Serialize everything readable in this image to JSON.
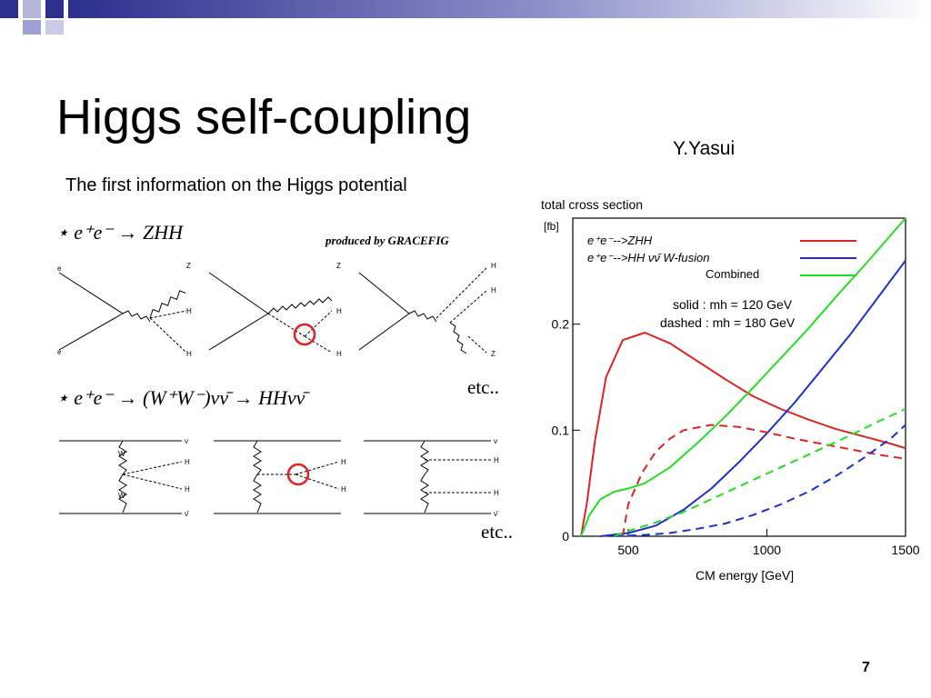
{
  "slide": {
    "title": "Higgs self-coupling",
    "author": "Y.Yasui",
    "subtitle": "The first information on  the Higgs potential",
    "page_number": "7"
  },
  "diagrams": {
    "process1": "⋆ e⁺e⁻ → ZHH",
    "process2": "⋆ e⁺e⁻ → (W⁺W⁻)νν̄ → HHνν̄",
    "produced_by": "produced by GRACEFIG",
    "etc_top": "etc..",
    "etc_bottom": "etc..",
    "highlight_color": "#e02020",
    "particle_labels": {
      "e": "e",
      "Z": "Z",
      "H": "H",
      "W": "W",
      "nu": "ν",
      "nubar": "ν̄"
    }
  },
  "chart_data": {
    "type": "line",
    "ylabel": "total cross section",
    "yunit": "[fb]",
    "xlabel": "CM energy  [GeV]",
    "xlim": [
      300,
      1500
    ],
    "ylim": [
      0,
      0.3
    ],
    "xticks": [
      "500",
      "1000",
      "1500"
    ],
    "yticks": [
      "0",
      "0.1",
      "0.2"
    ],
    "legend": {
      "placement": "top-left",
      "entries": [
        {
          "label": "e⁺e⁻-->ZHH",
          "color": "#dd2222",
          "italic": true
        },
        {
          "label": "e⁺e⁻-->HH νν̄ W-fusion",
          "color": "#1f2fc8"
        },
        {
          "label": "Combined",
          "color": "#22dd22"
        }
      ]
    },
    "annotations": [
      "solid :  mh = 120 GeV",
      "dashed : mh = 180 GeV"
    ],
    "series": [
      {
        "name": "ZHH (mh=120)",
        "color": "#dd2222",
        "dash": false,
        "x": [
          330,
          350,
          380,
          420,
          480,
          560,
          650,
          750,
          850,
          950,
          1050,
          1150,
          1250,
          1350,
          1450,
          1500
        ],
        "y": [
          0,
          0.03,
          0.09,
          0.15,
          0.185,
          0.192,
          0.182,
          0.165,
          0.148,
          0.132,
          0.12,
          0.11,
          0.101,
          0.094,
          0.087,
          0.083
        ]
      },
      {
        "name": "W-fusion (mh=120)",
        "color": "#1f2fc8",
        "dash": false,
        "x": [
          400,
          500,
          600,
          700,
          800,
          900,
          1000,
          1100,
          1200,
          1300,
          1400,
          1500
        ],
        "y": [
          0,
          0.003,
          0.01,
          0.025,
          0.045,
          0.07,
          0.097,
          0.126,
          0.158,
          0.19,
          0.225,
          0.26
        ]
      },
      {
        "name": "Combined (mh=120)",
        "color": "#22dd22",
        "dash": false,
        "x": [
          330,
          360,
          400,
          450,
          500,
          560,
          650,
          750,
          850,
          950,
          1050,
          1150,
          1250,
          1350,
          1450,
          1500
        ],
        "y": [
          0,
          0.02,
          0.035,
          0.042,
          0.045,
          0.05,
          0.065,
          0.088,
          0.113,
          0.14,
          0.168,
          0.196,
          0.226,
          0.255,
          0.285,
          0.3
        ]
      },
      {
        "name": "ZHH (mh=180)",
        "color": "#dd2222",
        "dash": true,
        "x": [
          480,
          500,
          550,
          600,
          650,
          700,
          800,
          900,
          1000,
          1100,
          1200,
          1300,
          1400,
          1500
        ],
        "y": [
          0,
          0.03,
          0.06,
          0.08,
          0.092,
          0.1,
          0.105,
          0.103,
          0.098,
          0.092,
          0.087,
          0.082,
          0.077,
          0.073
        ]
      },
      {
        "name": "W-fusion (mh=180)",
        "color": "#1f2fc8",
        "dash": true,
        "x": [
          450,
          550,
          650,
          750,
          850,
          950,
          1050,
          1150,
          1250,
          1350,
          1450,
          1500
        ],
        "y": [
          0,
          0.001,
          0.003,
          0.007,
          0.012,
          0.02,
          0.03,
          0.042,
          0.057,
          0.074,
          0.093,
          0.105
        ]
      },
      {
        "name": "Combined (mh=180)",
        "color": "#22dd22",
        "dash": true,
        "x": [
          450,
          500,
          600,
          700,
          800,
          900,
          1000,
          1100,
          1200,
          1300,
          1400,
          1500
        ],
        "y": [
          0,
          0.005,
          0.013,
          0.023,
          0.035,
          0.047,
          0.059,
          0.071,
          0.083,
          0.095,
          0.108,
          0.12
        ]
      }
    ]
  }
}
